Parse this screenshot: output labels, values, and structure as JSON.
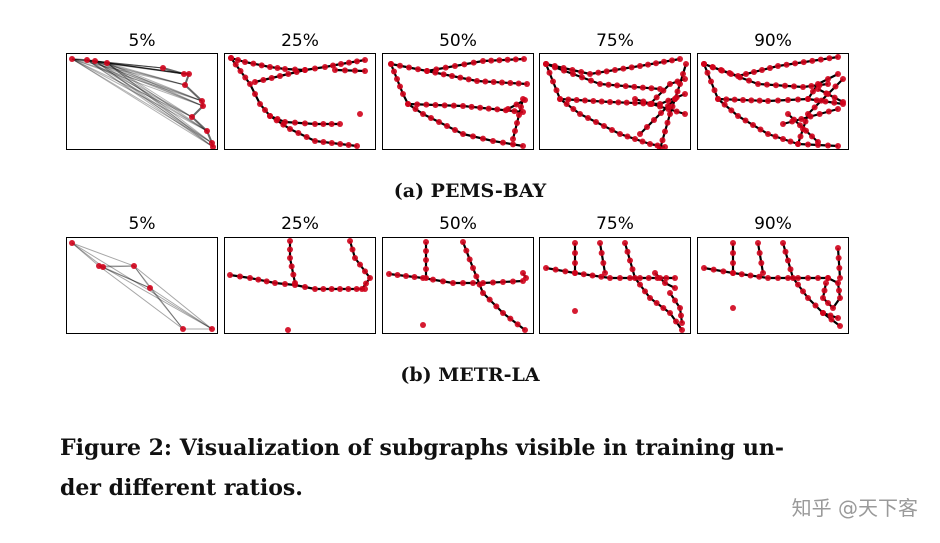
{
  "figure": {
    "rows": [
      {
        "dataset": "PEMS-BAY",
        "subcaption": "(a) PEMS-BAY",
        "ratios": [
          "5%",
          "25%",
          "50%",
          "75%",
          "90%"
        ]
      },
      {
        "dataset": "METR-LA",
        "subcaption": "(b) METR-LA",
        "ratios": [
          "5%",
          "25%",
          "50%",
          "75%",
          "90%"
        ]
      }
    ],
    "caption_line1": "Figure 2: Visualization of subgraphs visible in training un-",
    "caption_line2": "der different ratios.",
    "node_color": "#d0021b",
    "edge_color": "#000000"
  },
  "watermark": "知乎 @天下客"
}
